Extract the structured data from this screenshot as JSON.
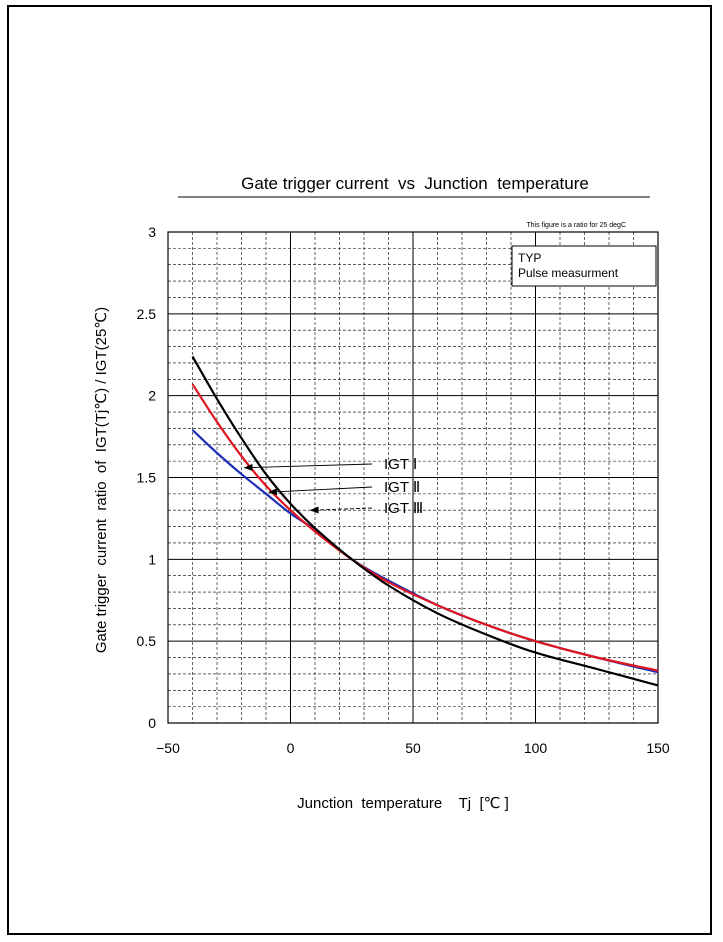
{
  "chart_data": {
    "type": "line",
    "title": "Gate trigger current  vs  Junction  temperature",
    "note": "This figure is a ratio for 25 degC",
    "legend_box": [
      "TYP",
      "Pulse measurment"
    ],
    "xlabel": "Junction  temperature    Tj  [℃ ]",
    "ylabel": "Gate trigger  current  ratio  of  IGT(Tj℃) / IGT(25℃)",
    "xlim": [
      -50,
      150
    ],
    "ylim": [
      0,
      3
    ],
    "x_ticks": [
      "−50",
      "0",
      "50",
      "100",
      "150"
    ],
    "y_ticks": [
      "0",
      "0.5",
      "1",
      "1.5",
      "2",
      "2.5",
      "3"
    ],
    "grid": true,
    "series": [
      {
        "name": "IGT Ⅰ",
        "color": "#1e2fb8",
        "x": [
          -40,
          -30,
          -20,
          -10,
          0,
          10,
          25,
          40,
          60,
          80,
          100,
          125,
          150
        ],
        "y": [
          1.79,
          1.65,
          1.52,
          1.4,
          1.28,
          1.18,
          1.0,
          0.87,
          0.72,
          0.6,
          0.5,
          0.4,
          0.31
        ]
      },
      {
        "name": "IGT Ⅱ",
        "color": "#e0141e",
        "x": [
          -40,
          -30,
          -20,
          -10,
          0,
          10,
          25,
          40,
          60,
          80,
          100,
          125,
          150
        ],
        "y": [
          2.07,
          1.84,
          1.63,
          1.45,
          1.3,
          1.17,
          1.0,
          0.86,
          0.72,
          0.6,
          0.5,
          0.4,
          0.32
        ]
      },
      {
        "name": "IGT Ⅲ",
        "color": "#000000",
        "x": [
          -40,
          -30,
          -20,
          -10,
          0,
          10,
          25,
          40,
          60,
          80,
          100,
          125,
          150
        ],
        "y": [
          2.24,
          1.98,
          1.74,
          1.52,
          1.34,
          1.19,
          1.0,
          0.84,
          0.67,
          0.54,
          0.43,
          0.33,
          0.23
        ]
      }
    ]
  }
}
